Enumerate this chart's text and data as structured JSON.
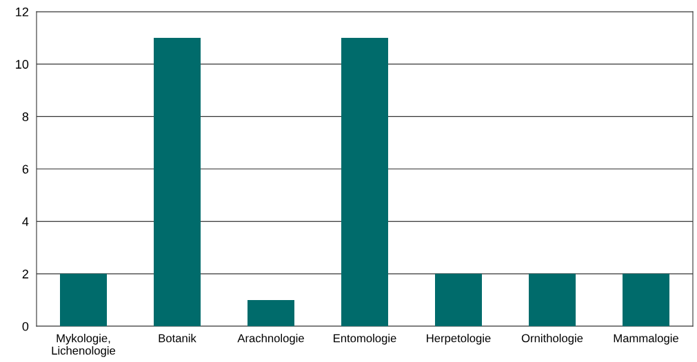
{
  "chart_data": {
    "type": "bar",
    "categories": [
      "Mykologie,\nLichenologie",
      "Botanik",
      "Arachnologie",
      "Entomologie",
      "Herpetologie",
      "Ornithologie",
      "Mammalogie"
    ],
    "values": [
      2,
      11,
      1,
      11,
      2,
      2,
      2
    ],
    "color": "#006b6b",
    "ylim": [
      0,
      12
    ],
    "yticks": [
      0,
      2,
      4,
      6,
      8,
      10,
      12
    ],
    "grid": "y"
  }
}
